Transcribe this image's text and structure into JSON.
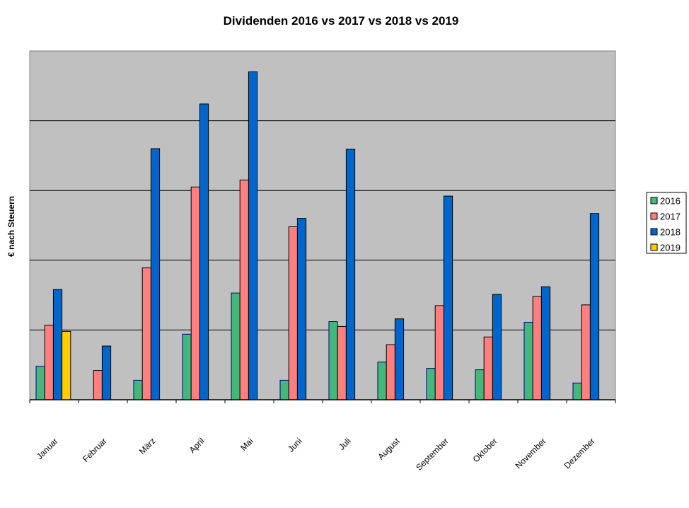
{
  "chart_data": {
    "type": "bar",
    "title": "Dividenden 2016 vs 2017 vs 2018 vs 2019",
    "xlabel": "",
    "ylabel": "€ nach Steuern",
    "ylim": [
      0,
      500
    ],
    "y_grid_step": 100,
    "y_ticks_labeled": false,
    "grid": true,
    "legend_position": "right",
    "categories": [
      "Januar",
      "Februar",
      "März",
      "April",
      "Mai",
      "Juni",
      "Juli",
      "August",
      "September",
      "Oktober",
      "November",
      "Dezember"
    ],
    "series": [
      {
        "name": "2016",
        "color": "#44B87A",
        "values": [
          48,
          null,
          28,
          94,
          153,
          28,
          112,
          54,
          45,
          43,
          111,
          24
        ]
      },
      {
        "name": "2017",
        "color": "#FF7F7F",
        "values": [
          107,
          42,
          189,
          305,
          315,
          248,
          105,
          79,
          135,
          90,
          148,
          136
        ]
      },
      {
        "name": "2018",
        "color": "#0066CC",
        "values": [
          158,
          77,
          360,
          424,
          470,
          260,
          359,
          116,
          292,
          151,
          162,
          267
        ]
      },
      {
        "name": "2019",
        "color": "#FFCC00",
        "values": [
          98,
          null,
          null,
          null,
          null,
          null,
          null,
          null,
          null,
          null,
          null,
          null
        ]
      }
    ]
  }
}
